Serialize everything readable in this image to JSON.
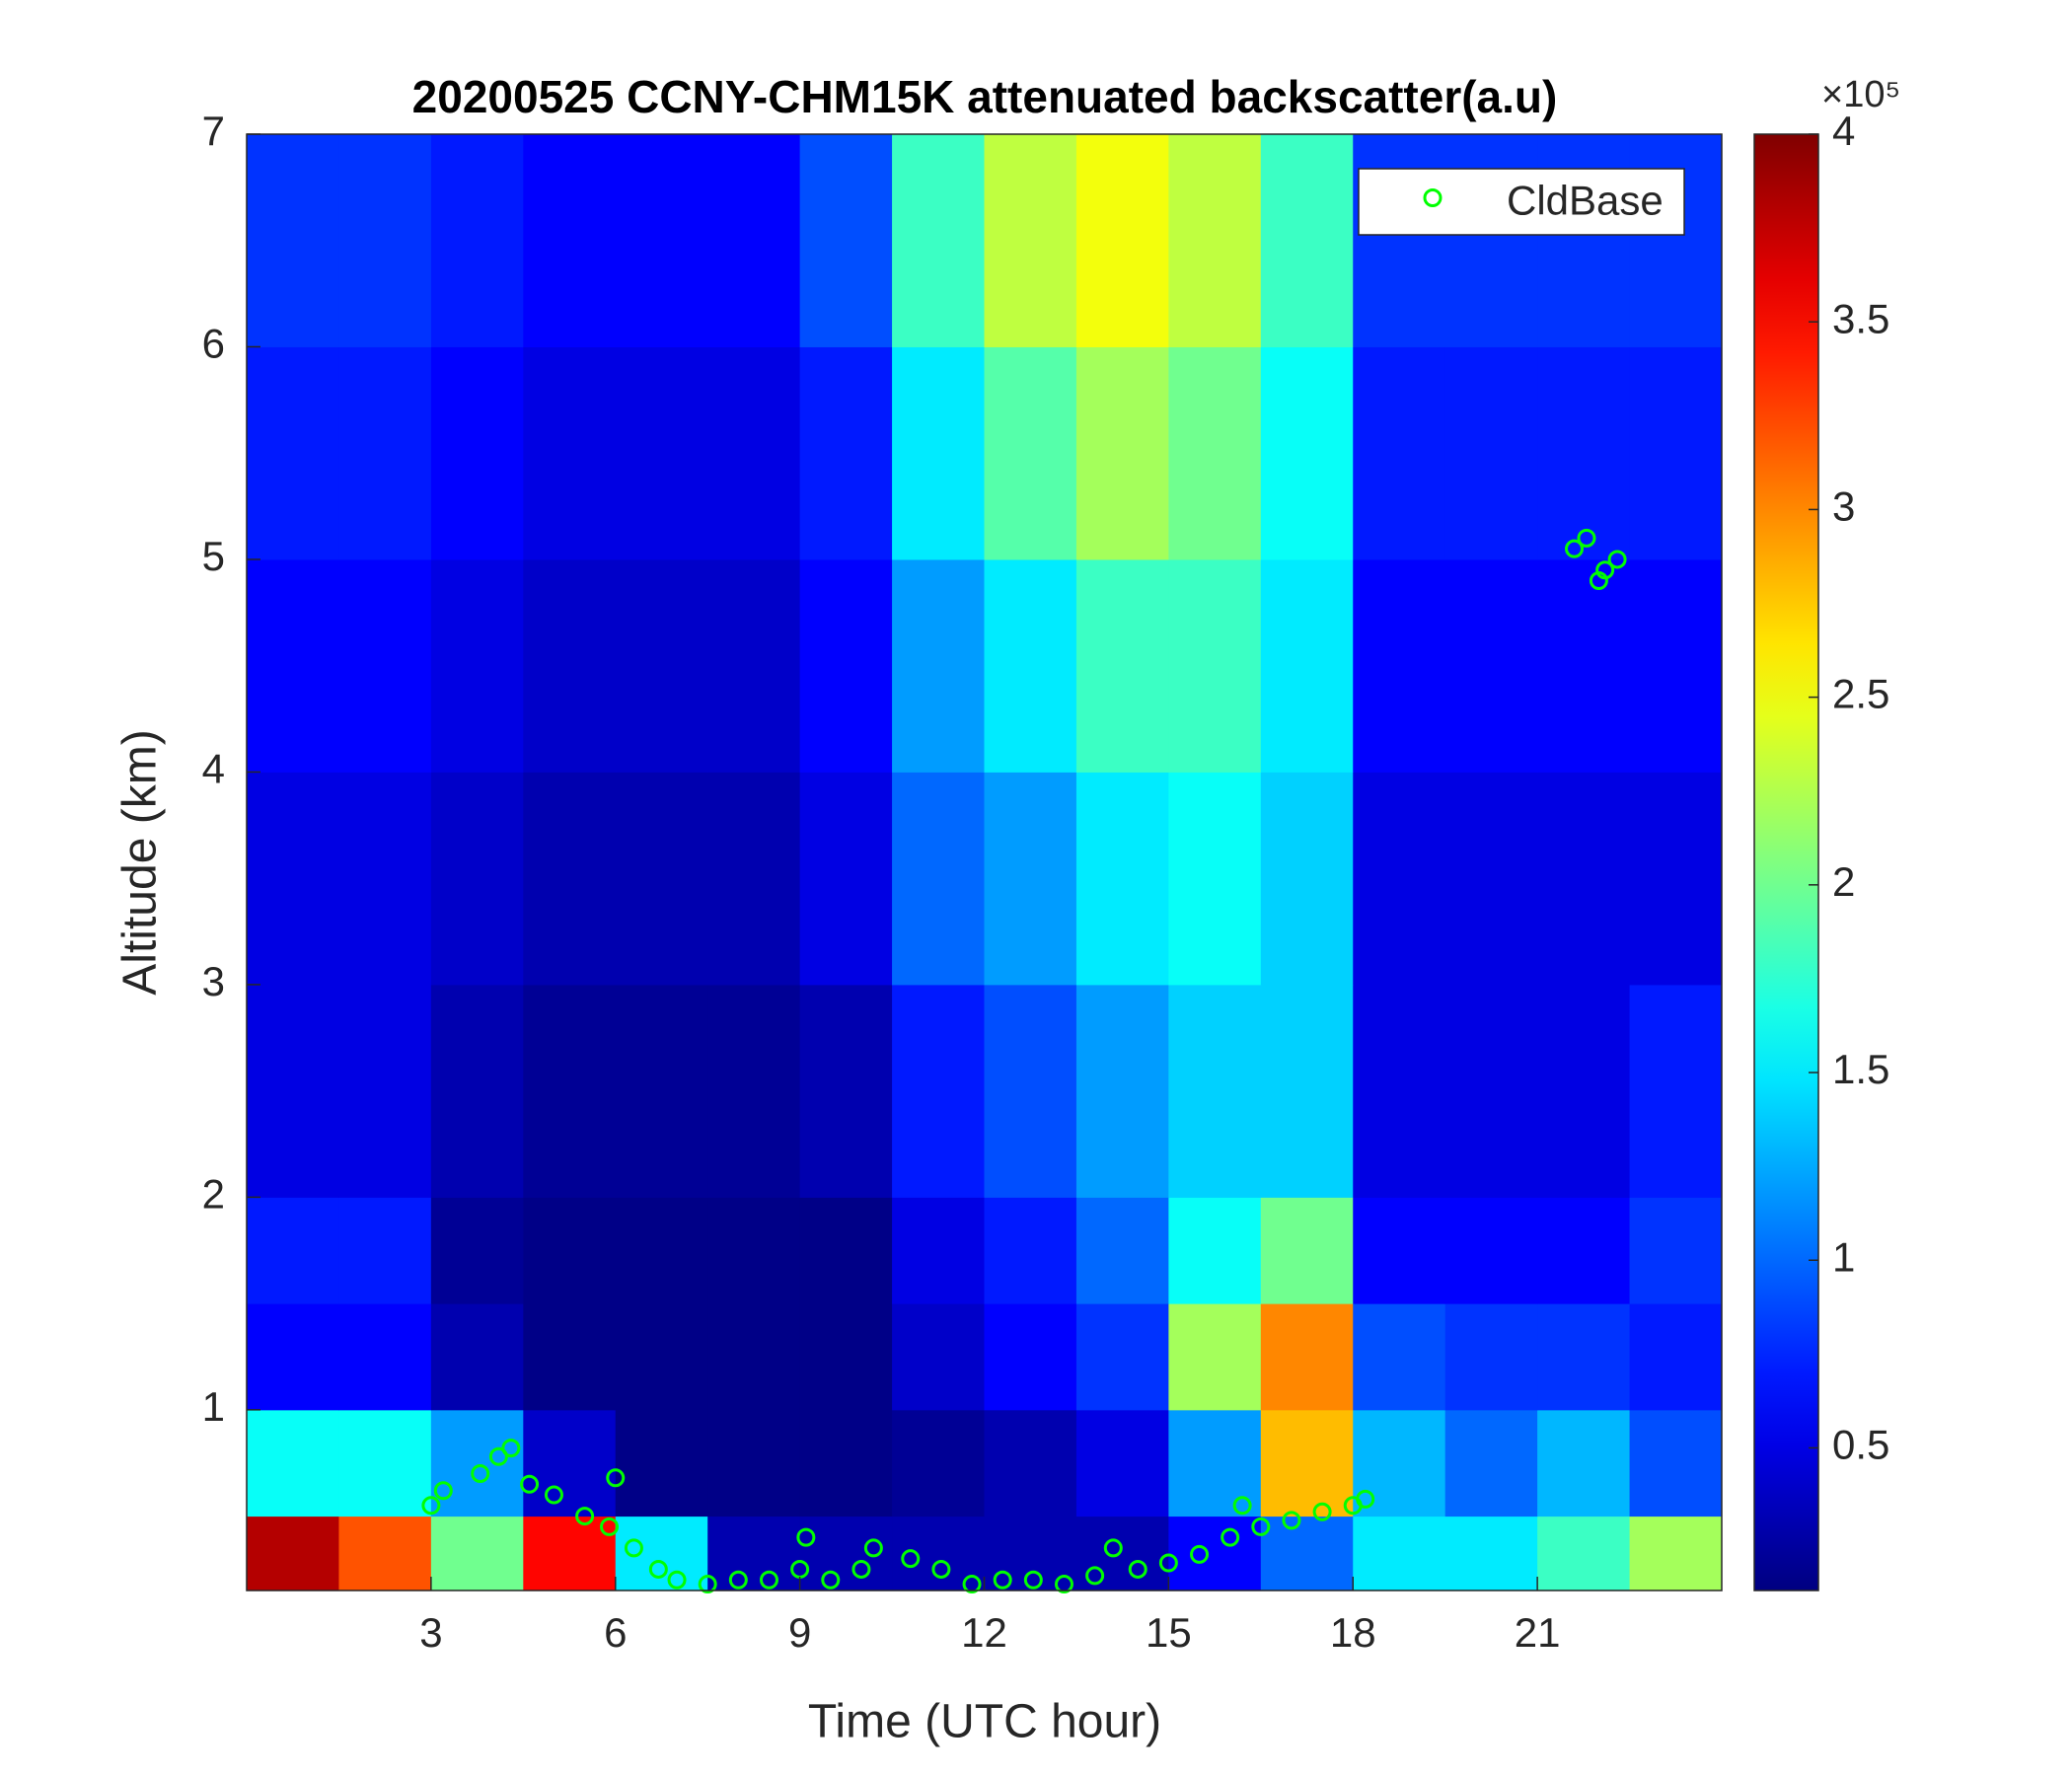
{
  "chart_data": {
    "type": "heatmap",
    "title": "20200525 CCNY-CHM15K attenuated backscatter(a.u)",
    "xlabel": "Time (UTC hour)",
    "ylabel": "Altitude (km)",
    "colormap": "jet",
    "x_bins": [
      0,
      1.5,
      3,
      4.5,
      6,
      7.5,
      9,
      10.5,
      12,
      13.5,
      15,
      16.5,
      18,
      19.5,
      21,
      22.5,
      24
    ],
    "y_bins": [
      0.15,
      0.5,
      1,
      1.5,
      2,
      3,
      4,
      5,
      6,
      7
    ],
    "z": [
      [
        3.8,
        3.2,
        2.0,
        3.5,
        1.5,
        0.3,
        0.3,
        0.3,
        0.3,
        0.3,
        0.6,
        1.0,
        1.5,
        1.5,
        1.8,
        2.2
      ],
      [
        1.6,
        1.6,
        1.2,
        0.4,
        0.15,
        0.15,
        0.15,
        0.2,
        0.3,
        0.5,
        1.2,
        2.8,
        1.3,
        1.0,
        1.3,
        0.9
      ],
      [
        0.6,
        0.6,
        0.3,
        0.15,
        0.15,
        0.15,
        0.15,
        0.4,
        0.6,
        0.8,
        2.2,
        3.0,
        0.9,
        0.8,
        0.8,
        0.7
      ],
      [
        0.7,
        0.7,
        0.2,
        0.15,
        0.15,
        0.15,
        0.15,
        0.5,
        0.7,
        1.0,
        1.6,
        2.0,
        0.6,
        0.6,
        0.6,
        0.8
      ],
      [
        0.5,
        0.5,
        0.3,
        0.2,
        0.2,
        0.2,
        0.3,
        0.7,
        0.9,
        1.2,
        1.4,
        1.4,
        0.5,
        0.5,
        0.5,
        0.7
      ],
      [
        0.5,
        0.5,
        0.4,
        0.3,
        0.3,
        0.3,
        0.5,
        1.0,
        1.2,
        1.5,
        1.6,
        1.4,
        0.5,
        0.5,
        0.5,
        0.5
      ],
      [
        0.6,
        0.6,
        0.5,
        0.4,
        0.4,
        0.4,
        0.6,
        1.2,
        1.5,
        1.8,
        1.8,
        1.5,
        0.6,
        0.6,
        0.6,
        0.6
      ],
      [
        0.7,
        0.7,
        0.6,
        0.5,
        0.5,
        0.5,
        0.7,
        1.5,
        1.9,
        2.2,
        2.0,
        1.6,
        0.7,
        0.7,
        0.7,
        0.7
      ],
      [
        0.8,
        0.8,
        0.7,
        0.6,
        0.6,
        0.6,
        0.9,
        1.8,
        2.3,
        2.5,
        2.3,
        1.8,
        0.8,
        0.8,
        0.8,
        0.8
      ]
    ],
    "xlim": [
      0,
      24
    ],
    "xticks": [
      3,
      6,
      9,
      12,
      15,
      18,
      21
    ],
    "ylim": [
      0.15,
      7
    ],
    "yticks": [
      1,
      2,
      3,
      4,
      5,
      6,
      7
    ],
    "clim": [
      0.12,
      4
    ],
    "cticks": [
      0.5,
      1,
      1.5,
      2,
      2.5,
      3,
      3.5,
      4
    ],
    "colorbar_scale": "×10⁵",
    "legend": "upper right",
    "series": [
      {
        "name": "CldBase",
        "color": "#00ff00",
        "x": [
          3.0,
          3.2,
          3.8,
          4.1,
          4.3,
          4.6,
          5.0,
          5.5,
          5.9,
          6.0,
          6.3,
          6.7,
          7.0,
          7.5,
          8.0,
          8.5,
          9.0,
          9.1,
          9.5,
          10.0,
          10.2,
          10.8,
          11.3,
          11.8,
          12.3,
          12.8,
          13.3,
          13.8,
          14.1,
          14.5,
          15.0,
          15.5,
          16.0,
          16.2,
          16.5,
          17.0,
          17.5,
          18.0,
          18.2,
          21.6,
          21.8,
          22.0,
          22.1,
          22.3
        ],
        "values": [
          0.55,
          0.62,
          0.7,
          0.78,
          0.82,
          0.65,
          0.6,
          0.5,
          0.45,
          0.68,
          0.35,
          0.25,
          0.2,
          0.18,
          0.2,
          0.2,
          0.25,
          0.4,
          0.2,
          0.25,
          0.35,
          0.3,
          0.25,
          0.18,
          0.2,
          0.2,
          0.18,
          0.22,
          0.35,
          0.25,
          0.28,
          0.32,
          0.4,
          0.55,
          0.45,
          0.48,
          0.52,
          0.55,
          0.58,
          5.05,
          5.1,
          4.9,
          4.95,
          5.0
        ]
      }
    ]
  }
}
